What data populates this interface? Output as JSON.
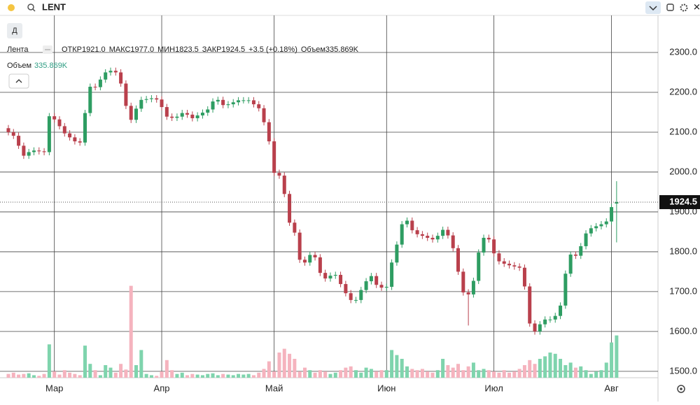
{
  "top_bar": {
    "symbol": "LENT",
    "interval_button": "Д"
  },
  "legend": {
    "name": "Лента",
    "open_label": "ОТКР",
    "open": "1921.0",
    "high_label": "МАКС",
    "high": "1977.0",
    "low_label": "МИН",
    "low": "1823.5",
    "close_label": "ЗАКР",
    "close": "1924.5",
    "change": "+3.5 (+0.18%)",
    "volume_label": "Объем",
    "volume": "335.869K"
  },
  "chart_data": {
    "type": "candlestick",
    "open": [
      2110,
      2100,
      2091,
      2066,
      2041,
      2050,
      2054,
      2052,
      2050,
      2140,
      2132,
      2115,
      2097,
      2087,
      2077,
      2074,
      2148,
      2214,
      2213,
      2232,
      2250,
      2254,
      2250,
      2222,
      2166,
      2131,
      2159,
      2181,
      2183,
      2185,
      2182,
      2163,
      2139,
      2136,
      2139,
      2148,
      2144,
      2135,
      2142,
      2149,
      2157,
      2177,
      2181,
      2168,
      2170,
      2175,
      2180,
      2180,
      2180,
      2170,
      2160,
      2125,
      2077,
      1998,
      1991,
      1945,
      1873,
      1848,
      1780,
      1773,
      1792,
      1786,
      1747,
      1733,
      1740,
      1742,
      1719,
      1696,
      1679,
      1679,
      1704,
      1726,
      1739,
      1717,
      1710,
      1712,
      1773,
      1818,
      1869,
      1878,
      1854,
      1844,
      1840,
      1835,
      1831,
      1840,
      1855,
      1841,
      1809,
      1750,
      1698,
      1693,
      1727,
      1798,
      1835,
      1831,
      1796,
      1776,
      1770,
      1766,
      1763,
      1760,
      1713,
      1620,
      1600,
      1618,
      1630,
      1630,
      1639,
      1665,
      1745,
      1793,
      1790,
      1814,
      1846,
      1859,
      1864,
      1869,
      1876,
      1921
    ],
    "high": [
      2118,
      2108,
      2099,
      2074,
      2058,
      2062,
      2062,
      2060,
      2148,
      2148,
      2140,
      2123,
      2105,
      2095,
      2085,
      2156,
      2222,
      2222,
      2240,
      2258,
      2262,
      2262,
      2258,
      2230,
      2174,
      2167,
      2189,
      2191,
      2193,
      2193,
      2190,
      2171,
      2147,
      2147,
      2156,
      2156,
      2152,
      2150,
      2157,
      2165,
      2185,
      2189,
      2189,
      2178,
      2183,
      2188,
      2188,
      2188,
      2188,
      2178,
      2168,
      2133,
      2085,
      2006,
      1999,
      1953,
      1881,
      1856,
      1788,
      1800,
      1800,
      1794,
      1755,
      1748,
      1750,
      1750,
      1727,
      1704,
      1687,
      1712,
      1734,
      1747,
      1747,
      1725,
      1720,
      1781,
      1826,
      1877,
      1886,
      1886,
      1862,
      1852,
      1848,
      1843,
      1848,
      1863,
      1863,
      1849,
      1817,
      1758,
      1706,
      1735,
      1806,
      1843,
      1843,
      1839,
      1804,
      1784,
      1778,
      1774,
      1771,
      1768,
      1721,
      1628,
      1626,
      1638,
      1638,
      1647,
      1673,
      1753,
      1801,
      1801,
      1822,
      1854,
      1867,
      1872,
      1877,
      1884,
      1920,
      1977
    ],
    "low": [
      2092,
      2083,
      2058,
      2033,
      2033,
      2042,
      2044,
      2042,
      2042,
      2124,
      2107,
      2089,
      2079,
      2069,
      2066,
      2066,
      2140,
      2205,
      2205,
      2224,
      2242,
      2242,
      2214,
      2158,
      2123,
      2123,
      2151,
      2173,
      2175,
      2174,
      2155,
      2131,
      2128,
      2128,
      2131,
      2136,
      2127,
      2127,
      2134,
      2141,
      2149,
      2169,
      2160,
      2160,
      2162,
      2167,
      2172,
      2172,
      2162,
      2152,
      2117,
      2069,
      1990,
      1983,
      1937,
      1865,
      1840,
      1772,
      1765,
      1765,
      1778,
      1739,
      1725,
      1725,
      1732,
      1711,
      1688,
      1671,
      1671,
      1671,
      1696,
      1718,
      1709,
      1702,
      1702,
      1704,
      1765,
      1810,
      1861,
      1846,
      1836,
      1832,
      1827,
      1823,
      1823,
      1832,
      1833,
      1801,
      1742,
      1690,
      1615,
      1685,
      1719,
      1790,
      1823,
      1788,
      1768,
      1762,
      1758,
      1755,
      1752,
      1705,
      1612,
      1592,
      1592,
      1610,
      1622,
      1622,
      1631,
      1657,
      1737,
      1782,
      1782,
      1806,
      1838,
      1851,
      1856,
      1861,
      1868,
      1823.5
    ],
    "close": [
      2100,
      2091,
      2066,
      2041,
      2050,
      2054,
      2052,
      2050,
      2140,
      2132,
      2115,
      2097,
      2087,
      2077,
      2074,
      2148,
      2214,
      2213,
      2232,
      2250,
      2254,
      2250,
      2222,
      2166,
      2131,
      2159,
      2181,
      2183,
      2185,
      2182,
      2163,
      2139,
      2136,
      2139,
      2148,
      2144,
      2135,
      2142,
      2149,
      2157,
      2177,
      2181,
      2168,
      2170,
      2175,
      2180,
      2180,
      2180,
      2170,
      2160,
      2125,
      2077,
      1998,
      1991,
      1945,
      1873,
      1848,
      1780,
      1773,
      1792,
      1786,
      1747,
      1733,
      1740,
      1742,
      1719,
      1696,
      1679,
      1679,
      1704,
      1726,
      1739,
      1717,
      1710,
      1712,
      1773,
      1818,
      1869,
      1878,
      1854,
      1844,
      1840,
      1835,
      1831,
      1840,
      1855,
      1841,
      1809,
      1750,
      1698,
      1693,
      1727,
      1798,
      1835,
      1831,
      1796,
      1776,
      1770,
      1766,
      1763,
      1760,
      1713,
      1620,
      1600,
      1618,
      1630,
      1630,
      1639,
      1665,
      1745,
      1793,
      1790,
      1814,
      1846,
      1859,
      1864,
      1869,
      1876,
      1912,
      1924.5
    ],
    "volume": [
      30,
      40,
      25,
      30,
      35,
      20,
      15,
      30,
      265,
      50,
      25,
      60,
      40,
      30,
      20,
      255,
      110,
      60,
      20,
      100,
      80,
      40,
      110,
      65,
      730,
      100,
      220,
      30,
      20,
      15,
      50,
      140,
      60,
      30,
      40,
      20,
      30,
      25,
      20,
      30,
      35,
      20,
      30,
      25,
      20,
      30,
      25,
      30,
      20,
      40,
      70,
      130,
      50,
      200,
      230,
      190,
      150,
      50,
      80,
      60,
      40,
      60,
      50,
      30,
      40,
      60,
      80,
      90,
      60,
      40,
      80,
      70,
      50,
      60,
      60,
      220,
      180,
      150,
      90,
      70,
      60,
      70,
      50,
      40,
      60,
      150,
      100,
      80,
      110,
      60,
      90,
      120,
      60,
      70,
      60,
      50,
      40,
      60,
      40,
      50,
      70,
      100,
      140,
      110,
      150,
      170,
      200,
      190,
      150,
      100,
      120,
      80,
      90,
      60,
      30,
      50,
      60,
      120,
      280,
      335.869
    ],
    "up_color": "#2e9d62",
    "down_color": "#b9404c",
    "volume_up_color": "#7fd4ad",
    "volume_down_color": "#f5b3be",
    "xlim": [
      -1.64,
      127.1
    ],
    "xticks": [
      {
        "value": 9,
        "label": "Мар"
      },
      {
        "value": 30,
        "label": "Апр"
      },
      {
        "value": 52,
        "label": "Май"
      },
      {
        "value": 74,
        "label": "Июн"
      },
      {
        "value": 95,
        "label": "Июл"
      },
      {
        "value": 118,
        "label": "Авг"
      }
    ],
    "ylim": [
      1484,
      2393
    ],
    "yticks": [
      {
        "value": 1500,
        "label": "1500.0"
      },
      {
        "value": 1600,
        "label": "1600.0"
      },
      {
        "value": 1700,
        "label": "1700.0"
      },
      {
        "value": 1800,
        "label": "1800.0"
      },
      {
        "value": 1900,
        "label": "1900.0"
      },
      {
        "value": 2000,
        "label": "2000.0"
      },
      {
        "value": 2100,
        "label": "2100.0"
      },
      {
        "value": 2200,
        "label": "2200.0"
      },
      {
        "value": 2300,
        "label": "2300.0"
      }
    ],
    "last_price": {
      "value": 1924.5,
      "label": "1924.5"
    },
    "grid": true
  }
}
